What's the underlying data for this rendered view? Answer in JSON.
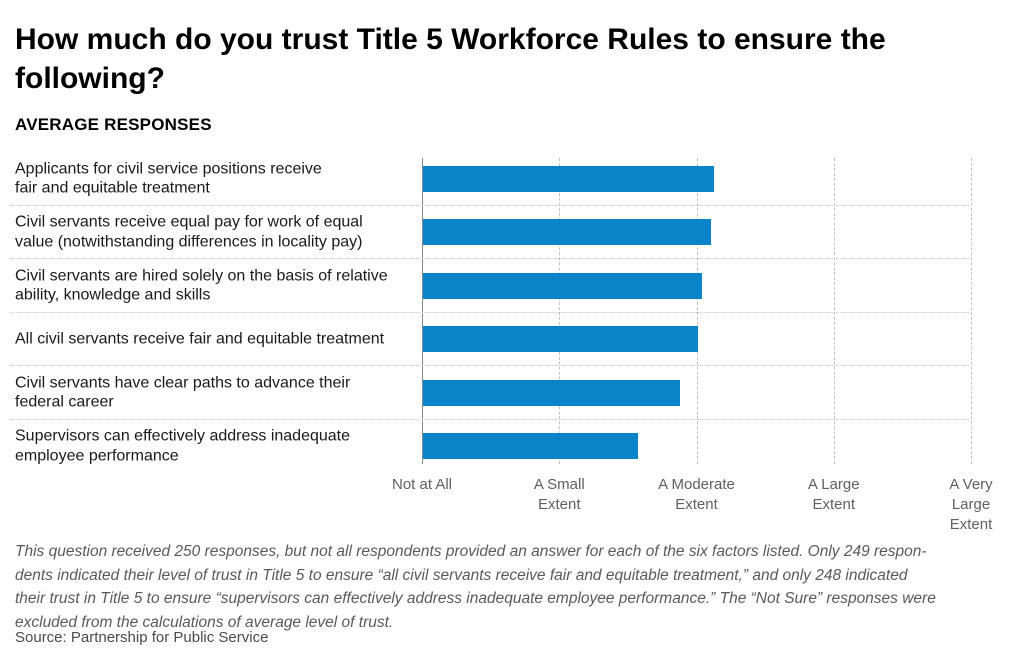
{
  "page": {
    "title": "How much do you trust Title 5 Workforce Rules to ensure the following?",
    "subtitle": "AVERAGE RESPONSES",
    "footnote_lines": [
      "This question received 250 responses, but not all respondents provided an answer for each of the six factors listed. Only 249 respon-",
      "dents indicated their level of trust in Title 5 to ensure “all civil servants receive fair and equitable treatment,” and only 248 indicated",
      "their trust in Title 5 to ensure “supervisors can effectively address inadequate employee performance.” The “Not Sure” responses were",
      "excluded from the calculations of average level of trust."
    ],
    "source": "Source: Partnership for Public Service"
  },
  "chart_data": {
    "type": "bar",
    "orientation": "horizontal",
    "title": "How much do you trust Title 5 Workforce Rules to ensure the following?",
    "subtitle": "AVERAGE RESPONSES",
    "categories": [
      "Applicants for civil service positions receive\nfair and equitable treatment",
      "Civil servants receive equal pay for work of equal\nvalue (notwithstanding differences in locality pay)",
      "Civil servants are hired solely on the basis of relative\nability, knowledge and skills",
      "All civil servants receive fair and equitable treatment",
      "Civil servants have clear paths to advance their\nfederal career",
      "Supervisors can effectively address inadequate\nemployee performance"
    ],
    "values": [
      3.12,
      3.1,
      3.03,
      3.0,
      2.87,
      2.57
    ],
    "xlabel": "",
    "ylabel": "",
    "x_axis": {
      "min": 1,
      "max": 5,
      "tick_labels": [
        "Not at All",
        "A Small\nExtent",
        "A Moderate\nExtent",
        "A Large\nExtent",
        "A Very\nLarge Extent"
      ]
    },
    "grid": "vertical dashed gridlines, dotted row separators",
    "legend": "none",
    "bar_color": "#0b83c9"
  }
}
